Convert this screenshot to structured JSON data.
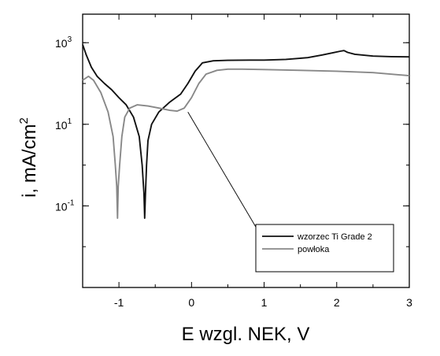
{
  "chart_data": {
    "type": "line",
    "title": "",
    "xlabel": "E wzgl. NEK, V",
    "ylabel": "i, mA/cm",
    "ylabel_superscript": "2",
    "xlim": [
      -1.5,
      3
    ],
    "ylim": [
      0.001,
      5000
    ],
    "yscale": "log",
    "grid": false,
    "legend_position": "bottom-right",
    "x_ticks": [
      {
        "value": -1,
        "label": "-1"
      },
      {
        "value": 0,
        "label": "0"
      },
      {
        "value": 1,
        "label": "1"
      },
      {
        "value": 2,
        "label": "2"
      },
      {
        "value": 3,
        "label": "3"
      }
    ],
    "y_ticks": [
      {
        "value": 1000,
        "base": "10",
        "exp": "3"
      },
      {
        "value": 10,
        "base": "10",
        "exp": "1"
      },
      {
        "value": 0.1,
        "base": "10",
        "exp": "-1"
      }
    ],
    "series": [
      {
        "name": "wzorzec Ti Grade 2",
        "color": "#111111",
        "points": [
          [
            -1.5,
            900
          ],
          [
            -1.45,
            500
          ],
          [
            -1.38,
            250
          ],
          [
            -1.3,
            150
          ],
          [
            -1.2,
            100
          ],
          [
            -1.1,
            70
          ],
          [
            -1.0,
            45
          ],
          [
            -0.9,
            30
          ],
          [
            -0.8,
            15
          ],
          [
            -0.72,
            5
          ],
          [
            -0.68,
            1
          ],
          [
            -0.655,
            0.2
          ],
          [
            -0.645,
            0.05
          ],
          [
            -0.635,
            0.2
          ],
          [
            -0.62,
            1
          ],
          [
            -0.6,
            4
          ],
          [
            -0.55,
            10
          ],
          [
            -0.45,
            20
          ],
          [
            -0.3,
            35
          ],
          [
            -0.15,
            55
          ],
          [
            -0.05,
            100
          ],
          [
            0.05,
            200
          ],
          [
            0.15,
            320
          ],
          [
            0.3,
            360
          ],
          [
            0.5,
            370
          ],
          [
            0.8,
            375
          ],
          [
            1.0,
            375
          ],
          [
            1.3,
            390
          ],
          [
            1.6,
            430
          ],
          [
            1.8,
            500
          ],
          [
            1.95,
            570
          ],
          [
            2.05,
            620
          ],
          [
            2.1,
            640
          ],
          [
            2.15,
            580
          ],
          [
            2.25,
            520
          ],
          [
            2.5,
            470
          ],
          [
            2.75,
            455
          ],
          [
            3.0,
            450
          ]
        ]
      },
      {
        "name": "powłoka",
        "color": "#888888",
        "points": [
          [
            -1.5,
            120
          ],
          [
            -1.42,
            150
          ],
          [
            -1.35,
            120
          ],
          [
            -1.25,
            60
          ],
          [
            -1.15,
            20
          ],
          [
            -1.08,
            5
          ],
          [
            -1.05,
            1
          ],
          [
            -1.03,
            0.3
          ],
          [
            -1.02,
            0.05
          ],
          [
            -1.01,
            0.3
          ],
          [
            -0.99,
            1
          ],
          [
            -0.96,
            5
          ],
          [
            -0.92,
            15
          ],
          [
            -0.85,
            25
          ],
          [
            -0.75,
            30
          ],
          [
            -0.6,
            28
          ],
          [
            -0.45,
            25
          ],
          [
            -0.3,
            22
          ],
          [
            -0.2,
            21
          ],
          [
            -0.1,
            25
          ],
          [
            0.0,
            45
          ],
          [
            0.1,
            100
          ],
          [
            0.2,
            170
          ],
          [
            0.35,
            210
          ],
          [
            0.5,
            225
          ],
          [
            0.7,
            225
          ],
          [
            1.0,
            220
          ],
          [
            1.5,
            210
          ],
          [
            2.0,
            200
          ],
          [
            2.5,
            185
          ],
          [
            3.0,
            155
          ]
        ]
      }
    ],
    "annotations": [
      {
        "type": "leader-line",
        "from_x": -0.05,
        "from_y": 20,
        "to_series": "wzorzec Ti Grade 2"
      }
    ]
  }
}
